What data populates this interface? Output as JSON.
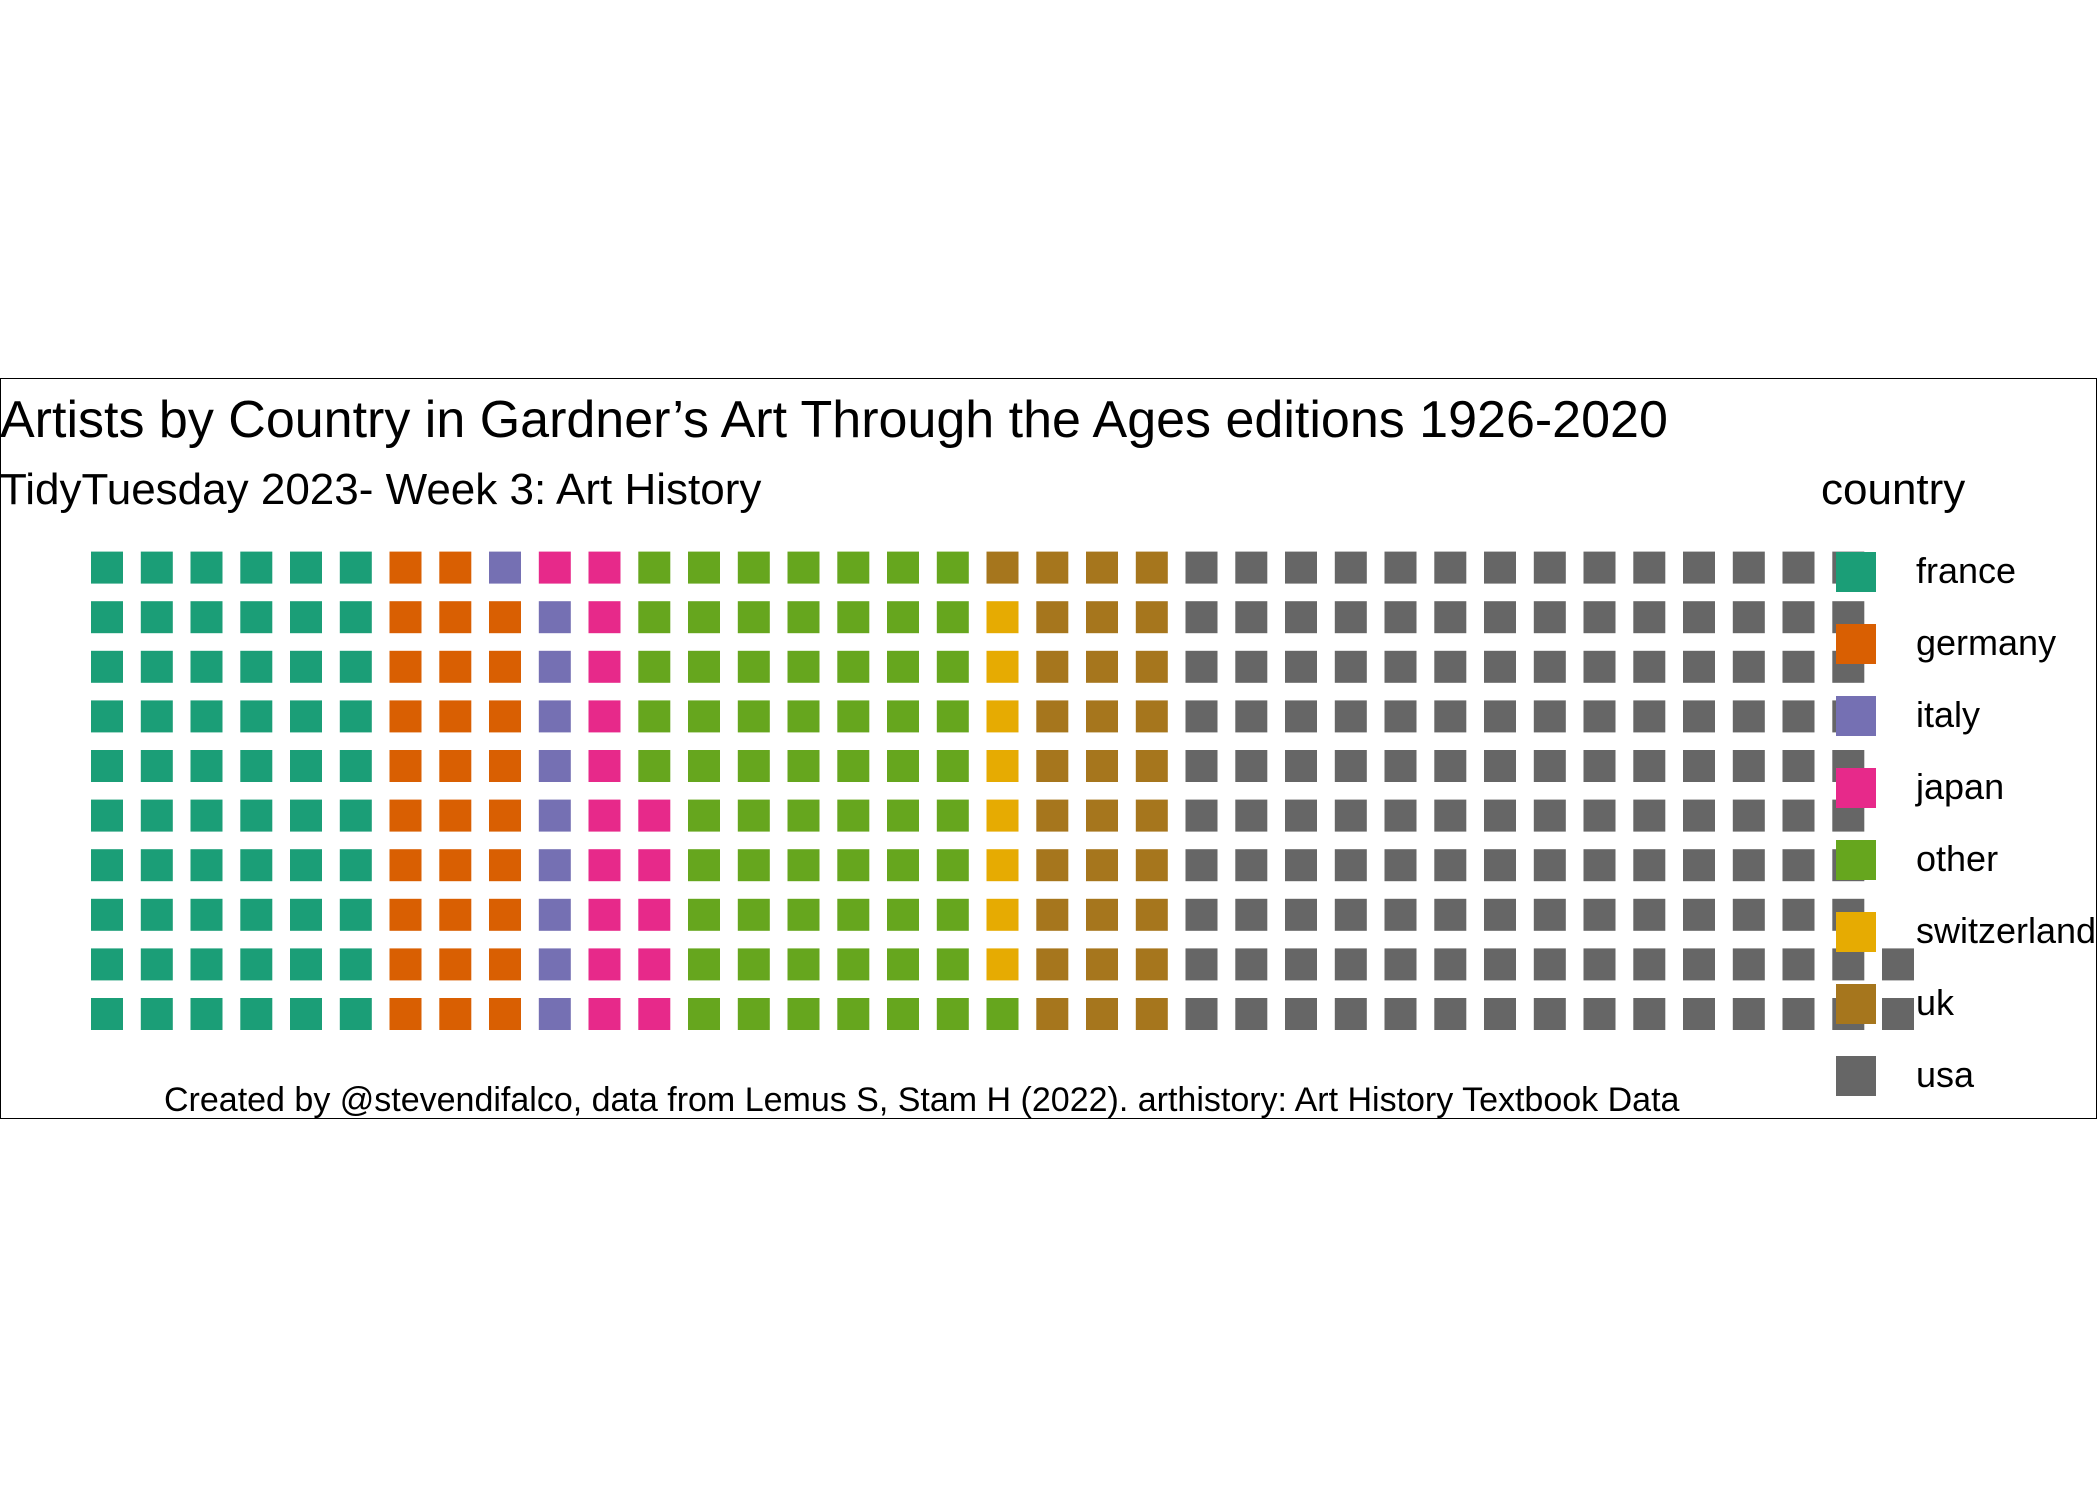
{
  "chart_data": {
    "type": "waffle",
    "title": "Artists by Country in Gardner’s Art Through the Ages editions 1926-2020",
    "subtitle": "TidyTuesday 2023- Week 3: Art History",
    "caption": "Created by @stevendifalco, data from Lemus S, Stam H (2022). arthistory: Art History Textbook Data",
    "legend_title": "country",
    "legend_position": "right",
    "rows_per_column": 10,
    "fill_order": "columns bottom-to-top, left-to-right",
    "categories": [
      "france",
      "germany",
      "italy",
      "japan",
      "other",
      "switzerland",
      "uk",
      "usa"
    ],
    "values": [
      60,
      29,
      10,
      16,
      66,
      8,
      31,
      142
    ],
    "colors": [
      "#1b9e77",
      "#d95f02",
      "#7570b3",
      "#e7298a",
      "#66a61e",
      "#e6ab02",
      "#a6761d",
      "#666666"
    ]
  }
}
